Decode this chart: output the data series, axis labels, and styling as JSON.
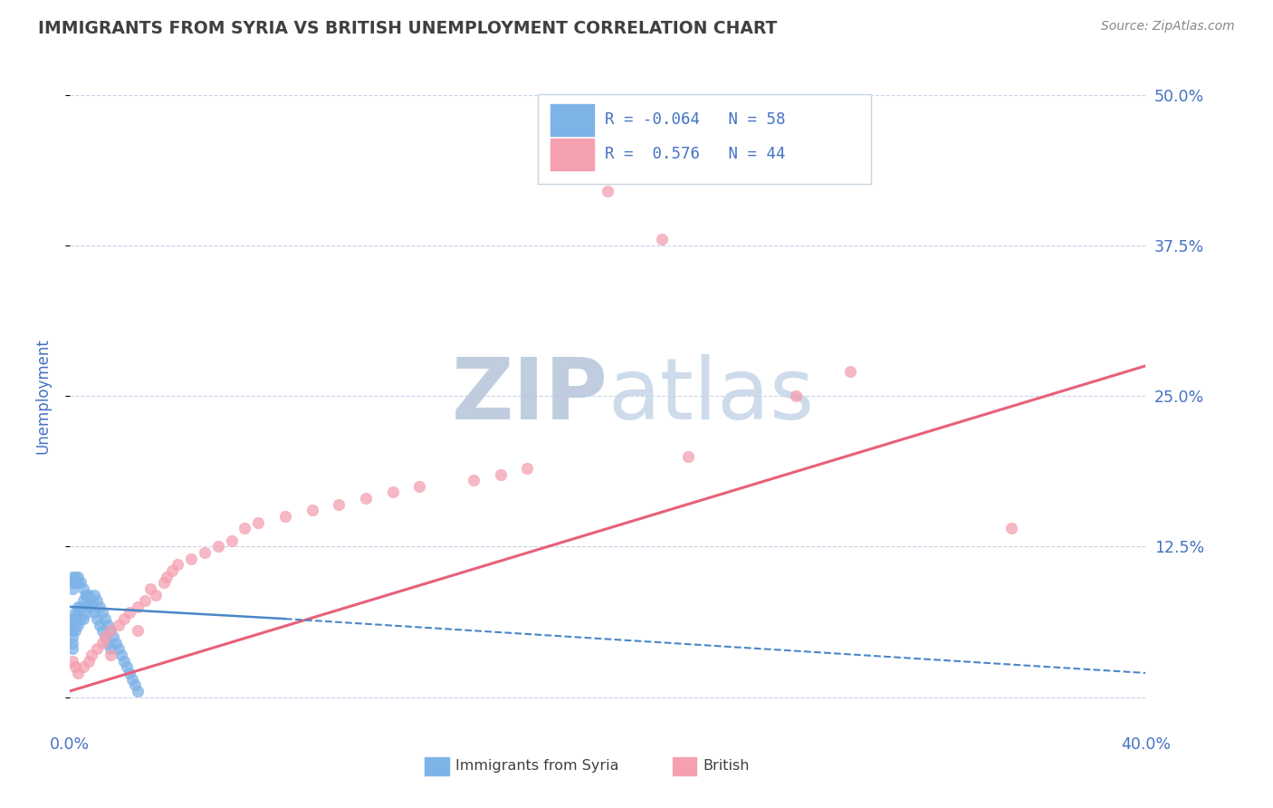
{
  "title": "IMMIGRANTS FROM SYRIA VS BRITISH UNEMPLOYMENT CORRELATION CHART",
  "source": "Source: ZipAtlas.com",
  "ylabel": "Unemployment",
  "xlim": [
    0.0,
    0.4
  ],
  "ylim": [
    -0.025,
    0.525
  ],
  "yticks": [
    0.0,
    0.125,
    0.25,
    0.375,
    0.5
  ],
  "ytick_labels": [
    "",
    "12.5%",
    "25.0%",
    "37.5%",
    "50.0%"
  ],
  "xticks": [
    0.0,
    0.05,
    0.1,
    0.15,
    0.2,
    0.25,
    0.3,
    0.35,
    0.4
  ],
  "xtick_labels": [
    "0.0%",
    "",
    "",
    "",
    "",
    "",
    "",
    "",
    "40.0%"
  ],
  "blue_color": "#7eb3e8",
  "pink_color": "#f4a0b0",
  "trend_blue_color": "#4a86c8",
  "trend_pink_color": "#e8607a",
  "axis_color": "#4472c4",
  "grid_color": "#c8d4e8",
  "title_color": "#404040",
  "watermark_color": "#cdd8e8",
  "source_color": "#888888",
  "legend_edge_color": "#c8d4e0",
  "bottom_legend_color": "#404040",
  "blue_x": [
    0.001,
    0.001,
    0.001,
    0.001,
    0.001,
    0.001,
    0.002,
    0.002,
    0.002,
    0.002,
    0.003,
    0.003,
    0.003,
    0.004,
    0.004,
    0.005,
    0.005,
    0.006,
    0.006,
    0.007,
    0.007,
    0.008,
    0.009,
    0.01,
    0.011,
    0.012,
    0.013,
    0.014,
    0.015,
    0.016,
    0.017,
    0.018,
    0.019,
    0.02,
    0.021,
    0.022,
    0.023,
    0.024,
    0.025,
    0.001,
    0.001,
    0.001,
    0.002,
    0.002,
    0.003,
    0.003,
    0.004,
    0.005,
    0.006,
    0.007,
    0.008,
    0.009,
    0.01,
    0.011,
    0.012,
    0.013,
    0.014,
    0.015
  ],
  "blue_y": [
    0.045,
    0.05,
    0.055,
    0.06,
    0.065,
    0.04,
    0.055,
    0.06,
    0.065,
    0.07,
    0.06,
    0.07,
    0.075,
    0.065,
    0.075,
    0.065,
    0.08,
    0.07,
    0.085,
    0.075,
    0.085,
    0.08,
    0.085,
    0.08,
    0.075,
    0.07,
    0.065,
    0.06,
    0.055,
    0.05,
    0.045,
    0.04,
    0.035,
    0.03,
    0.025,
    0.02,
    0.015,
    0.01,
    0.005,
    0.09,
    0.095,
    0.1,
    0.095,
    0.1,
    0.095,
    0.1,
    0.095,
    0.09,
    0.085,
    0.08,
    0.075,
    0.07,
    0.065,
    0.06,
    0.055,
    0.05,
    0.045,
    0.04
  ],
  "pink_x": [
    0.001,
    0.002,
    0.003,
    0.005,
    0.007,
    0.008,
    0.01,
    0.012,
    0.013,
    0.015,
    0.015,
    0.018,
    0.02,
    0.022,
    0.025,
    0.025,
    0.028,
    0.03,
    0.032,
    0.035,
    0.036,
    0.038,
    0.04,
    0.045,
    0.05,
    0.055,
    0.06,
    0.065,
    0.07,
    0.08,
    0.09,
    0.1,
    0.11,
    0.12,
    0.13,
    0.15,
    0.16,
    0.17,
    0.2,
    0.22,
    0.23,
    0.27,
    0.29,
    0.35
  ],
  "pink_y": [
    0.03,
    0.025,
    0.02,
    0.025,
    0.03,
    0.035,
    0.04,
    0.045,
    0.05,
    0.055,
    0.035,
    0.06,
    0.065,
    0.07,
    0.075,
    0.055,
    0.08,
    0.09,
    0.085,
    0.095,
    0.1,
    0.105,
    0.11,
    0.115,
    0.12,
    0.125,
    0.13,
    0.14,
    0.145,
    0.15,
    0.155,
    0.16,
    0.165,
    0.17,
    0.175,
    0.18,
    0.185,
    0.19,
    0.42,
    0.38,
    0.2,
    0.25,
    0.27,
    0.14
  ],
  "pink_trend_x0": 0.0,
  "pink_trend_y0": 0.005,
  "pink_trend_x1": 0.4,
  "pink_trend_y1": 0.275,
  "blue_trend_x0": 0.0,
  "blue_trend_y0": 0.075,
  "blue_trend_x1": 0.4,
  "blue_trend_y1": 0.02
}
